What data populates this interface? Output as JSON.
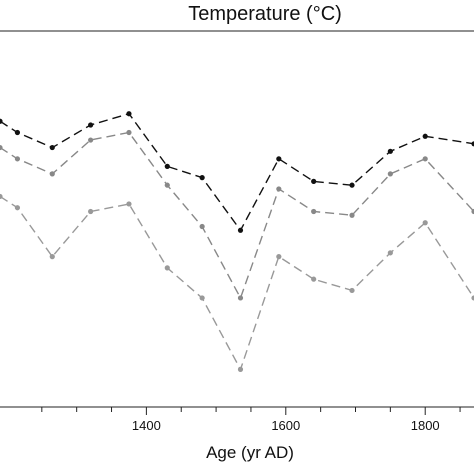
{
  "chart_data": {
    "type": "line",
    "title": "Temperature (°C)",
    "xlabel": "Age (yr AD)",
    "ylabel": "",
    "xlim": [
      1190,
      1870
    ],
    "ylim": [
      0,
      1
    ],
    "grid": false,
    "x_ticks": [
      1400,
      1600,
      1800
    ],
    "x_tick_labels": [
      "1400",
      "1600",
      "1800"
    ],
    "x_minor_ticks": [
      1250,
      1300,
      1350,
      1450,
      1500,
      1550,
      1650,
      1700,
      1750,
      1850
    ],
    "series": [
      {
        "color": "#111111",
        "x": [
          1190,
          1215,
          1265,
          1320,
          1375,
          1430,
          1480,
          1535,
          1590,
          1640,
          1695,
          1750,
          1800,
          1870
        ],
        "y": [
          0.76,
          0.73,
          0.69,
          0.75,
          0.78,
          0.64,
          0.61,
          0.47,
          0.66,
          0.6,
          0.59,
          0.68,
          0.72,
          0.7
        ]
      },
      {
        "color": "#888888",
        "x": [
          1190,
          1215,
          1265,
          1320,
          1375,
          1430,
          1480,
          1535,
          1590,
          1640,
          1695,
          1750,
          1800,
          1870
        ],
        "y": [
          0.69,
          0.66,
          0.62,
          0.71,
          0.73,
          0.59,
          0.48,
          0.29,
          0.58,
          0.52,
          0.51,
          0.62,
          0.66,
          0.52
        ]
      },
      {
        "color": "#999999",
        "x": [
          1190,
          1215,
          1265,
          1320,
          1375,
          1430,
          1480,
          1535,
          1590,
          1640,
          1695,
          1750,
          1800,
          1870
        ],
        "y": [
          0.56,
          0.53,
          0.4,
          0.52,
          0.54,
          0.37,
          0.29,
          0.1,
          0.4,
          0.34,
          0.31,
          0.41,
          0.49,
          0.29
        ]
      }
    ]
  }
}
